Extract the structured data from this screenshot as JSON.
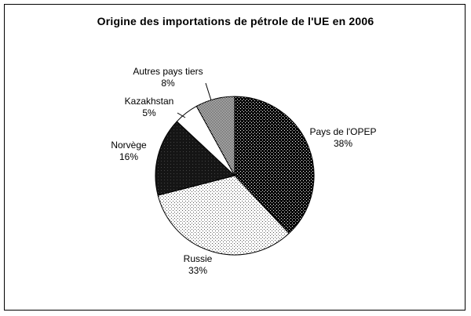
{
  "chart_data": {
    "type": "pie",
    "title": "Origine des importations de pétrole de l'UE en 2006",
    "slices": [
      {
        "label": "Pays de l'OPEP",
        "value": 38,
        "value_label": "38%",
        "color": "#111111",
        "pattern": "dark-dots"
      },
      {
        "label": "Russie",
        "value": 33,
        "value_label": "33%",
        "color": "#ffffff",
        "pattern": "light-dots"
      },
      {
        "label": "Norvège",
        "value": 16,
        "value_label": "16%",
        "color": "#1c1c1c",
        "pattern": "dark-solid"
      },
      {
        "label": "Kazakhstan",
        "value": 5,
        "value_label": "5%",
        "color": "#ffffff",
        "pattern": "light-solid"
      },
      {
        "label": "Autres pays tiers",
        "value": 8,
        "value_label": "8%",
        "color": "#8a8a8a",
        "pattern": "grey-dots"
      }
    ]
  }
}
